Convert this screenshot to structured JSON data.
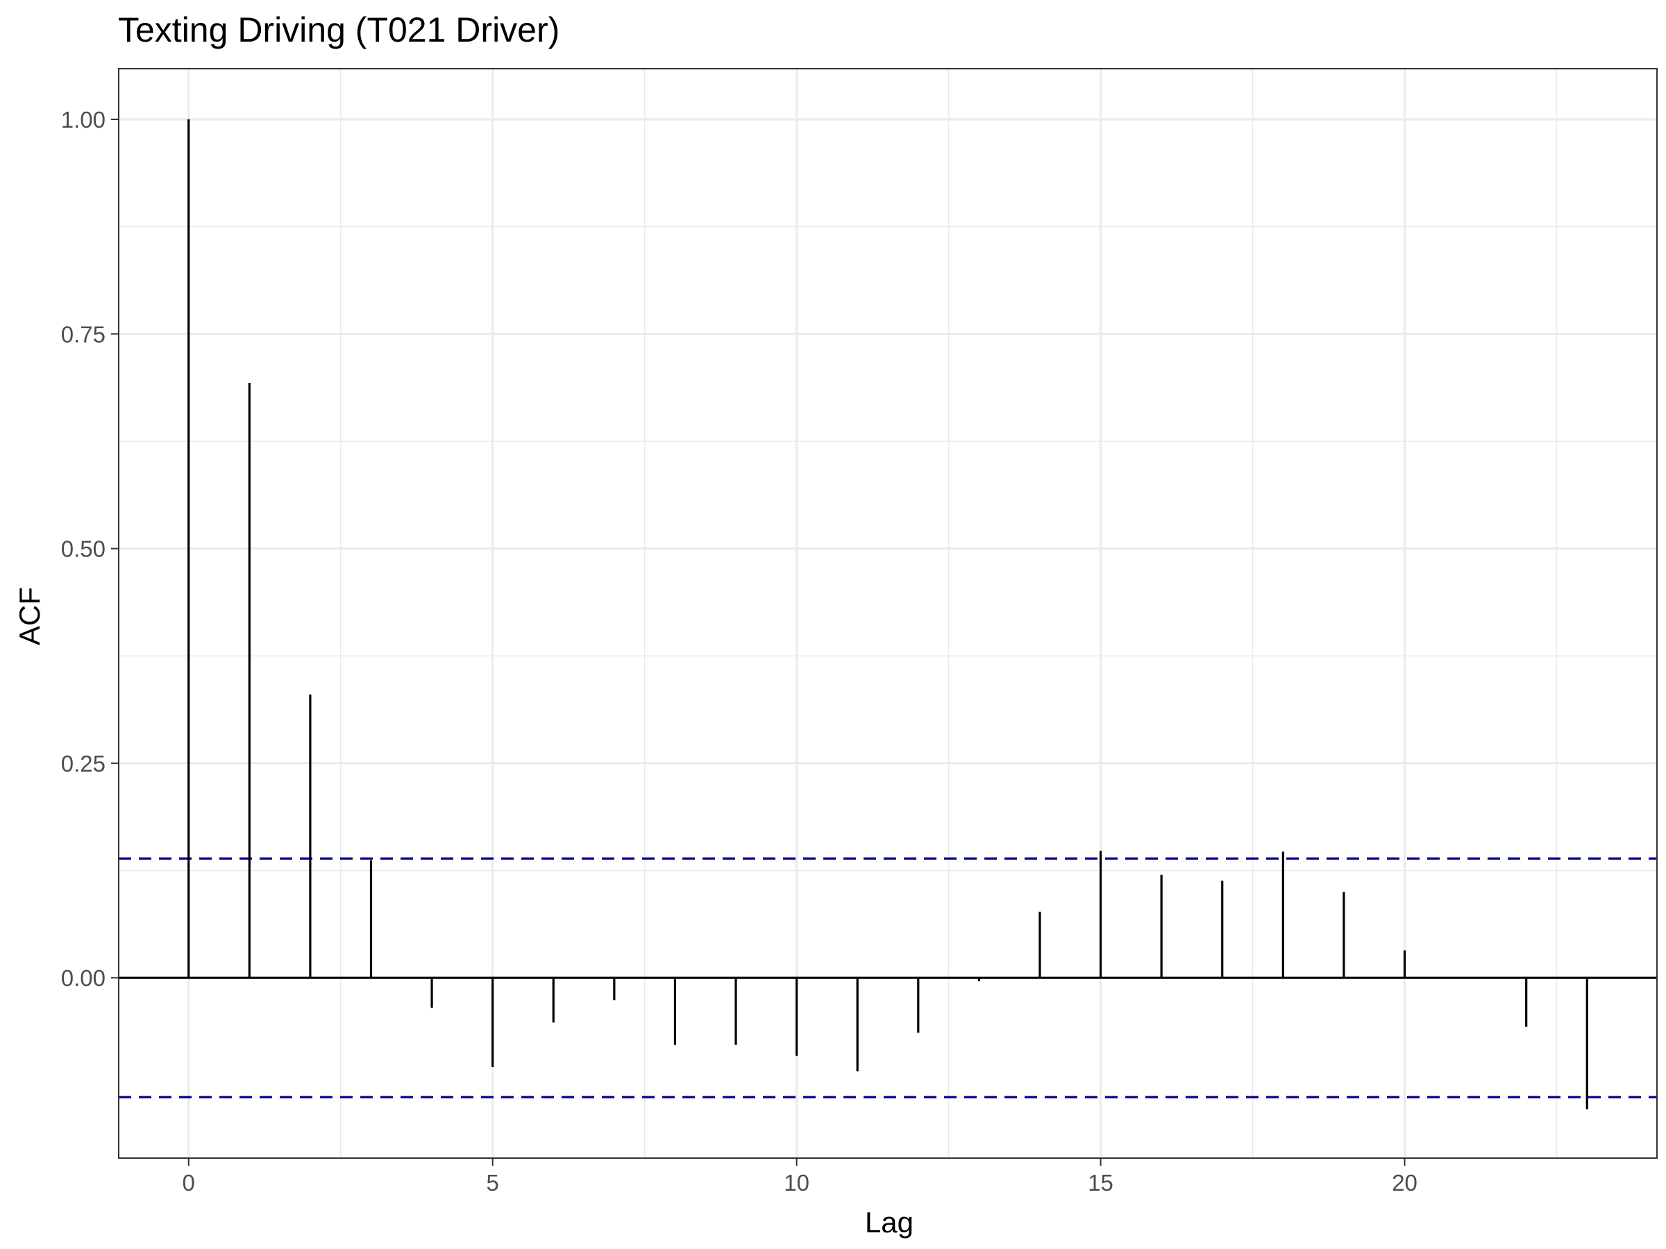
{
  "chart_data": {
    "type": "bar",
    "title": "Texting Driving (T021 Driver)",
    "xlabel": "Lag",
    "ylabel": "ACF",
    "xlim": [
      -1.15,
      24.15
    ],
    "ylim": [
      -0.21,
      1.059
    ],
    "x_ticks": [
      0,
      5,
      10,
      15,
      20
    ],
    "x_tick_labels": [
      "0",
      "5",
      "10",
      "15",
      "20"
    ],
    "y_ticks": [
      0,
      0.25,
      0.5,
      0.75,
      1
    ],
    "y_tick_labels": [
      "0.00",
      "0.25",
      "0.50",
      "0.75",
      "1.00"
    ],
    "grid": true,
    "legend": "none",
    "confidence_bound": 0.139,
    "colors": {
      "bars": "#000000",
      "confidence_lines": "#00008b",
      "grid": "#ebebeb"
    },
    "lags": [
      0,
      1,
      2,
      3,
      4,
      5,
      6,
      7,
      8,
      9,
      10,
      11,
      12,
      13,
      14,
      15,
      16,
      17,
      18,
      19,
      20,
      21,
      22,
      23
    ],
    "values": [
      1.0,
      0.693,
      0.33,
      0.137,
      -0.035,
      -0.104,
      -0.052,
      -0.026,
      -0.078,
      -0.078,
      -0.091,
      -0.109,
      -0.064,
      -0.004,
      0.077,
      0.148,
      0.12,
      0.113,
      0.147,
      0.1,
      0.032,
      0.0,
      -0.057,
      -0.153
    ]
  }
}
